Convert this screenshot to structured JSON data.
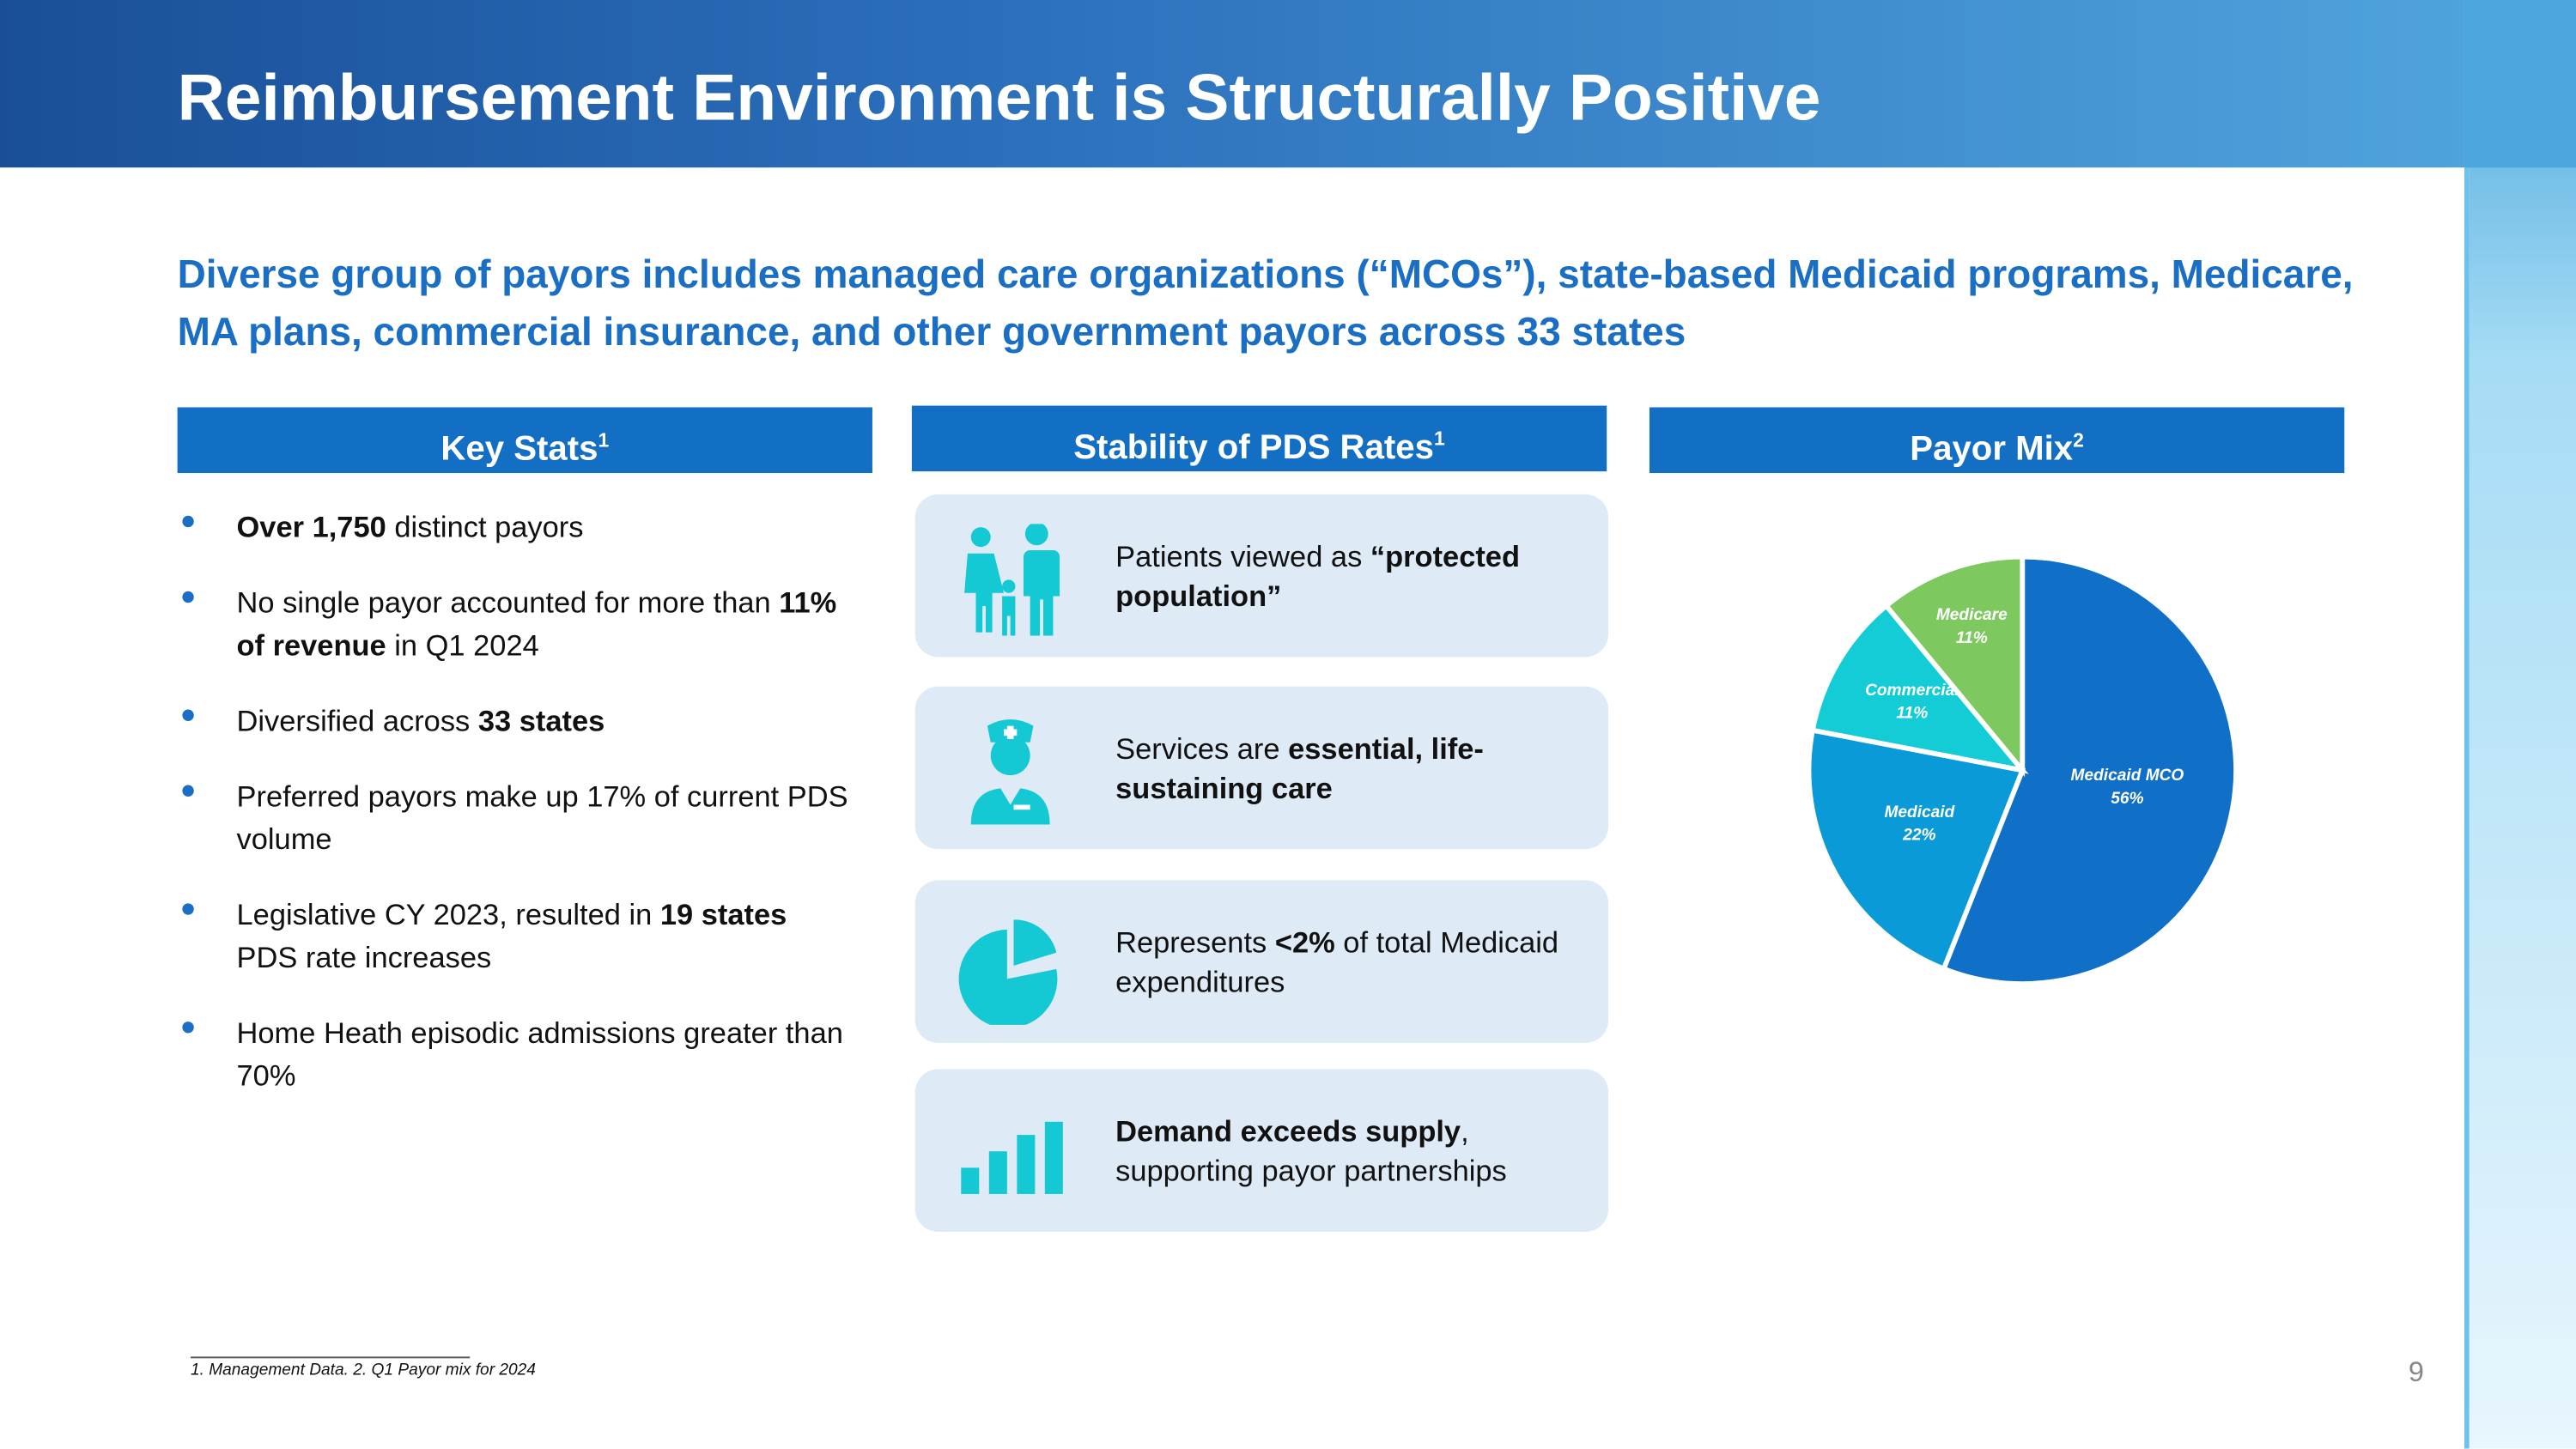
{
  "header": {
    "title": "Reimbursement Environment is Structurally Positive"
  },
  "subtitle": "Diverse group of payors includes managed care organizations (“MCOs”), state-based Medicaid programs, Medicare, MA plans, commercial insurance, and other government payors across 33 states",
  "columns": [
    {
      "heading": "Key Stats",
      "note": "1"
    },
    {
      "heading": "Stability of PDS Rates",
      "note": "1"
    },
    {
      "heading": "Payor Mix",
      "note": "2"
    }
  ],
  "key_stats": [
    [
      {
        "text": "Over 1,750",
        "bold": true
      },
      {
        "text": " distinct payors",
        "bold": false
      }
    ],
    [
      {
        "text": "No single payor accounted for more than ",
        "bold": false
      },
      {
        "text": "11% of revenue",
        "bold": true
      },
      {
        "text": " in Q1 2024",
        "bold": false
      }
    ],
    [
      {
        "text": "Diversified across ",
        "bold": false
      },
      {
        "text": "33 states",
        "bold": true
      }
    ],
    [
      {
        "text": "Preferred payors make up 17% of current PDS volume",
        "bold": false
      }
    ],
    [
      {
        "text": "Legislative CY 2023, resulted in ",
        "bold": false
      },
      {
        "text": "19 states",
        "bold": true
      },
      {
        "text": " PDS rate increases",
        "bold": false
      }
    ],
    [
      {
        "text": "Home Heath episodic admissions greater than 70%",
        "bold": false
      }
    ]
  ],
  "stability": [
    [
      {
        "text": "Patients viewed as ",
        "bold": false
      },
      {
        "text": "“protected population”",
        "bold": true
      }
    ],
    [
      {
        "text": "Services are ",
        "bold": false
      },
      {
        "text": "essential, life-sustaining care",
        "bold": true
      }
    ],
    [
      {
        "text": "Represents ",
        "bold": false
      },
      {
        "text": "<2%",
        "bold": true
      },
      {
        "text": " of total Medicaid expenditures",
        "bold": false
      }
    ],
    [
      {
        "text": "Demand exceeds supply",
        "bold": true
      },
      {
        "text": ", supporting payor partnerships",
        "bold": false
      }
    ]
  ],
  "chart_data": {
    "type": "pie",
    "categories": [
      "Medicaid MCO",
      "Medicaid",
      "Commercial",
      "Medicare"
    ],
    "values": [
      56,
      22,
      11,
      11
    ],
    "value_labels": [
      "56%",
      "22%",
      "11%",
      "11%"
    ],
    "colors": [
      "#106fc7",
      "#0b9ad8",
      "#14ccd6",
      "#7ec95f"
    ]
  },
  "footnote": "1. Management Data.  2. Q1 Payor mix for 2024",
  "page_number": "9"
}
